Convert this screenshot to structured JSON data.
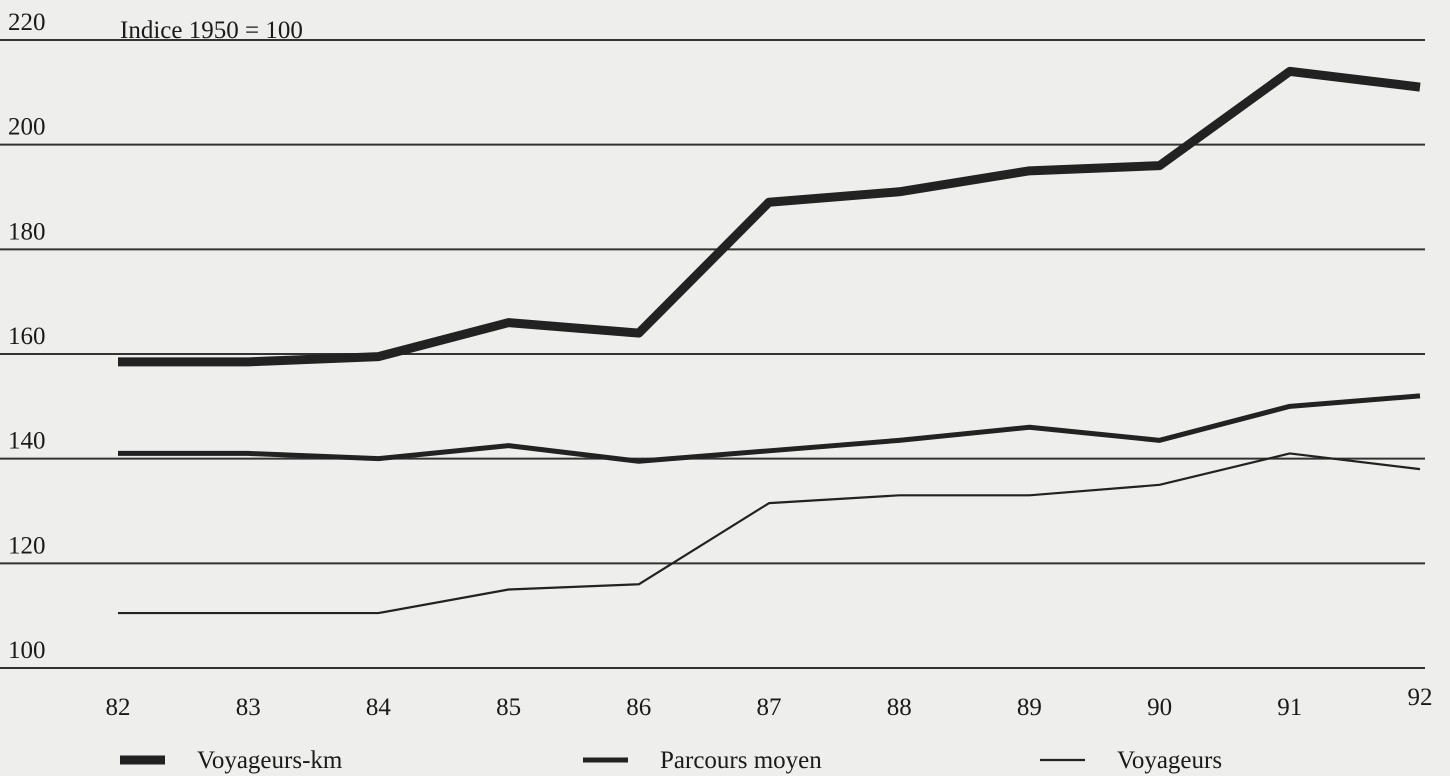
{
  "chart_data": {
    "type": "line",
    "title": "Indice 1950 = 100",
    "categories": [
      "82",
      "83",
      "84",
      "85",
      "86",
      "87",
      "88",
      "89",
      "90",
      "91",
      "92"
    ],
    "series": [
      {
        "name": "Voyageurs-km",
        "color": "#222222",
        "values": [
          158.5,
          158.5,
          159.5,
          166,
          164,
          189,
          191,
          195,
          196,
          214,
          211
        ]
      },
      {
        "name": "Parcours moyen",
        "color": "#222222",
        "values": [
          141,
          141,
          140,
          142.5,
          139.5,
          141.5,
          143.5,
          146,
          143.5,
          150,
          152
        ]
      },
      {
        "name": "Voyageurs",
        "color": "#222222",
        "values": [
          110.5,
          110.5,
          110.5,
          115,
          116,
          131.5,
          133,
          133,
          135,
          141,
          138
        ]
      }
    ],
    "ylim": [
      100,
      220
    ],
    "yticks": [
      100,
      120,
      140,
      160,
      180,
      200,
      220
    ],
    "grid": true
  }
}
